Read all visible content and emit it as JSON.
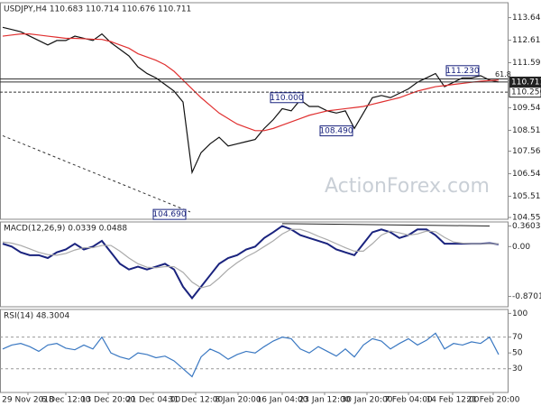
{
  "chart_data": [
    {
      "type": "line",
      "title": "USDJPY,H4 110.683 110.714 110.676 110.711",
      "ylim": [
        104.47,
        114.32
      ],
      "yticks": [
        {
          "value": 113.64,
          "label": "113.640"
        },
        {
          "value": 112.615,
          "label": "112.615"
        },
        {
          "value": 111.59,
          "label": "111.590"
        },
        {
          "value": 109.54,
          "label": "109.540"
        },
        {
          "value": 108.515,
          "label": "108.515"
        },
        {
          "value": 107.565,
          "label": "107.565"
        },
        {
          "value": 106.54,
          "label": "106.540"
        },
        {
          "value": 105.515,
          "label": "105.515"
        },
        {
          "value": 104.55,
          "label": "104.550"
        }
      ],
      "series": [
        {
          "color": "#111111",
          "values": [
            113.2,
            113.1,
            113.0,
            112.8,
            112.6,
            112.4,
            112.6,
            112.6,
            112.8,
            112.7,
            112.6,
            112.9,
            112.5,
            112.2,
            111.9,
            111.4,
            111.1,
            110.9,
            110.6,
            110.3,
            109.8,
            106.6,
            107.5,
            107.9,
            108.2,
            107.8,
            107.9,
            108.0,
            108.1,
            108.6,
            109.0,
            109.5,
            109.4,
            109.9,
            109.6,
            109.6,
            109.4,
            109.3,
            109.4,
            108.6,
            109.3,
            110.0,
            110.1,
            110.0,
            110.2,
            110.4,
            110.7,
            110.9,
            111.1,
            110.5,
            110.7,
            110.9,
            110.9,
            111.0,
            110.8,
            110.71
          ]
        },
        {
          "color": "#e03030",
          "values": [
            112.8,
            112.85,
            112.9,
            112.9,
            112.85,
            112.8,
            112.75,
            112.7,
            112.7,
            112.68,
            112.66,
            112.65,
            112.55,
            112.4,
            112.25,
            112.0,
            111.85,
            111.7,
            111.5,
            111.2,
            110.8,
            110.4,
            110.0,
            109.65,
            109.3,
            109.05,
            108.8,
            108.65,
            108.5,
            108.5,
            108.6,
            108.75,
            108.9,
            109.05,
            109.2,
            109.3,
            109.4,
            109.45,
            109.5,
            109.55,
            109.6,
            109.7,
            109.8,
            109.9,
            110.0,
            110.15,
            110.3,
            110.4,
            110.5,
            110.55,
            110.6,
            110.65,
            110.7,
            110.75,
            110.78,
            110.8
          ]
        }
      ],
      "levels": [
        {
          "value": 110.711,
          "label": "110.711"
        },
        {
          "value": 110.25,
          "label": "110.250"
        }
      ],
      "fib_line": 110.85,
      "fib_label": "61.8",
      "trendline": [
        108.27,
        104.8
      ],
      "annotations": [
        {
          "x": 51,
          "value": 111.23,
          "label": "111.230"
        },
        {
          "x": 31.5,
          "value": 110.0,
          "label": "110.000"
        },
        {
          "x": 37,
          "value": 108.49,
          "label": "108.490"
        },
        {
          "x": 18.5,
          "value": 104.69,
          "label": "104.690"
        }
      ],
      "watermark": "ActionForex.com"
    },
    {
      "type": "line",
      "title": "MACD(12,26,9) 0.0339 0.0488",
      "ylim": [
        -1.05,
        0.43
      ],
      "yticks": [
        0.3603,
        {
          "value": 0,
          "label": "0.00"
        },
        -0.8701
      ],
      "series": [
        {
          "color": "#1a237e",
          "values": [
            0.05,
            0,
            -0.1,
            -0.15,
            -0.15,
            -0.2,
            -0.1,
            -0.05,
            0.05,
            -0.05,
            0,
            0.1,
            -0.1,
            -0.3,
            -0.4,
            -0.35,
            -0.4,
            -0.35,
            -0.3,
            -0.4,
            -0.7,
            -0.9,
            -0.7,
            -0.5,
            -0.3,
            -0.2,
            -0.15,
            -0.05,
            0,
            0.15,
            0.25,
            0.36,
            0.3,
            0.2,
            0.15,
            0.1,
            0.05,
            -0.05,
            -0.1,
            -0.15,
            0.05,
            0.25,
            0.3,
            0.25,
            0.15,
            0.2,
            0.3,
            0.3,
            0.2,
            0.05,
            0.05,
            0.05,
            0.05,
            0.05,
            0.06,
            0.04
          ]
        },
        {
          "color": "#aaaaaa",
          "values": [
            0.08,
            0.06,
            0.02,
            -0.04,
            -0.1,
            -0.14,
            -0.15,
            -0.12,
            -0.06,
            -0.02,
            -0.02,
            0.02,
            0.02,
            -0.08,
            -0.2,
            -0.3,
            -0.36,
            -0.37,
            -0.35,
            -0.35,
            -0.45,
            -0.62,
            -0.72,
            -0.68,
            -0.55,
            -0.4,
            -0.28,
            -0.18,
            -0.1,
            0,
            0.1,
            0.22,
            0.3,
            0.3,
            0.25,
            0.18,
            0.12,
            0.05,
            -0.02,
            -0.08,
            -0.08,
            0.05,
            0.2,
            0.27,
            0.24,
            0.2,
            0.22,
            0.27,
            0.26,
            0.16,
            0.08,
            0.06,
            0.05,
            0.05,
            0.05,
            0.05
          ]
        }
      ],
      "resistance": [
        0.4,
        0.36
      ]
    },
    {
      "type": "line",
      "title": "RSI(14) 48.3004",
      "ylim": [
        0,
        105
      ],
      "yticks": [
        100,
        70,
        50,
        30
      ],
      "dashed": [
        70,
        30
      ],
      "series": [
        {
          "color": "#3a78c2",
          "values": [
            55,
            60,
            62,
            58,
            52,
            60,
            62,
            56,
            54,
            60,
            55,
            70,
            50,
            45,
            42,
            50,
            48,
            44,
            46,
            40,
            30,
            20,
            45,
            55,
            50,
            42,
            48,
            52,
            50,
            58,
            65,
            70,
            68,
            55,
            50,
            58,
            52,
            46,
            55,
            45,
            60,
            68,
            65,
            55,
            62,
            68,
            60,
            66,
            75,
            55,
            62,
            60,
            64,
            62,
            70,
            48
          ]
        }
      ],
      "xticks": [
        {
          "value": 2.8,
          "label": "29 Nov 2018"
        },
        {
          "value": 7,
          "label": "6 Dec 12:00"
        },
        {
          "value": 11.7,
          "label": "13 Dec 20:00"
        },
        {
          "value": 16.7,
          "label": "21 Dec 04:00"
        },
        {
          "value": 21.4,
          "label": "31 Dec 12:00"
        },
        {
          "value": 26.1,
          "label": "8 Jan 20:00"
        },
        {
          "value": 31,
          "label": "16 Jan 04:00"
        },
        {
          "value": 35.7,
          "label": "23 Jan 12:00"
        },
        {
          "value": 40.4,
          "label": "30 Jan 20:00"
        },
        {
          "value": 45,
          "label": "7 Feb 04:00"
        },
        {
          "value": 49.9,
          "label": "14 Feb 12:00"
        },
        {
          "value": 54.4,
          "label": "21 Feb 20:00"
        }
      ]
    }
  ]
}
